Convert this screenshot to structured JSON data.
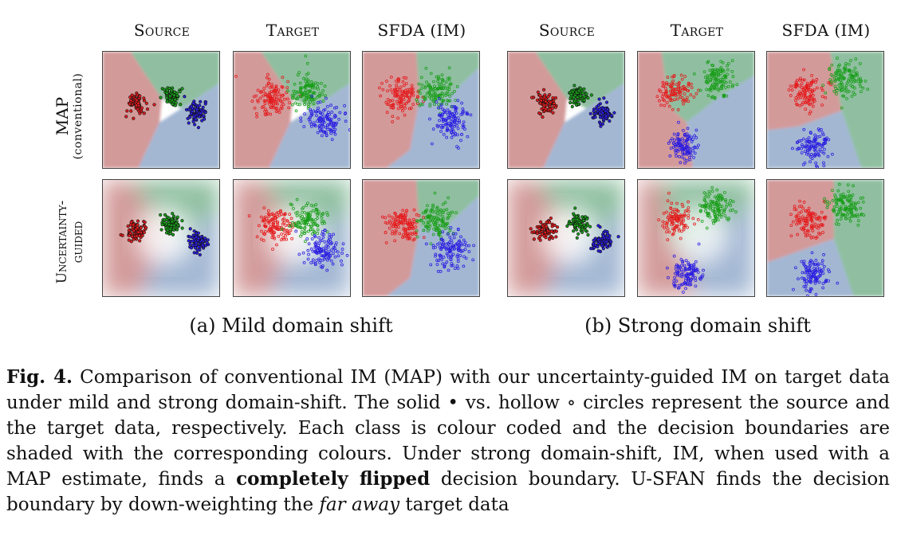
{
  "columns": {
    "source": "Source",
    "target": "Target",
    "sfda": "SFDA (IM)"
  },
  "rows": {
    "map": "MAP",
    "map_sub": "(conventional)",
    "unc_line1": "Uncertainty-",
    "unc_line2": "guided"
  },
  "subcaptions": {
    "a": "(a) Mild domain shift",
    "b": "(b) Strong domain shift"
  },
  "caption": {
    "label": "Fig. 4.",
    "t1": " Comparison of conventional IM (MAP) with our uncertainty-guided IM on target data under mild and strong domain-shift. The solid ",
    "solid": "•",
    "t2": " vs. hollow ",
    "hollow": "∘",
    "t3": " circles represent the source and the target data, respectively. Each class is colour coded and the decision boundaries are shaded with the corresponding colours. Under strong domain-shift, IM, when used with a MAP estimate, finds a ",
    "bold": "completely flipped",
    "t4": " decision boundary. U-SFAN finds the decision boundary by down-weighting the ",
    "italic": "far away",
    "t5": " target data"
  },
  "colors": {
    "red": "#e41a1c",
    "green": "#1a9e1a",
    "blue": "#2b1de0",
    "bg_red": "#d39a9a",
    "bg_green": "#8fbfa0",
    "bg_blue": "#a3b7d3"
  }
}
